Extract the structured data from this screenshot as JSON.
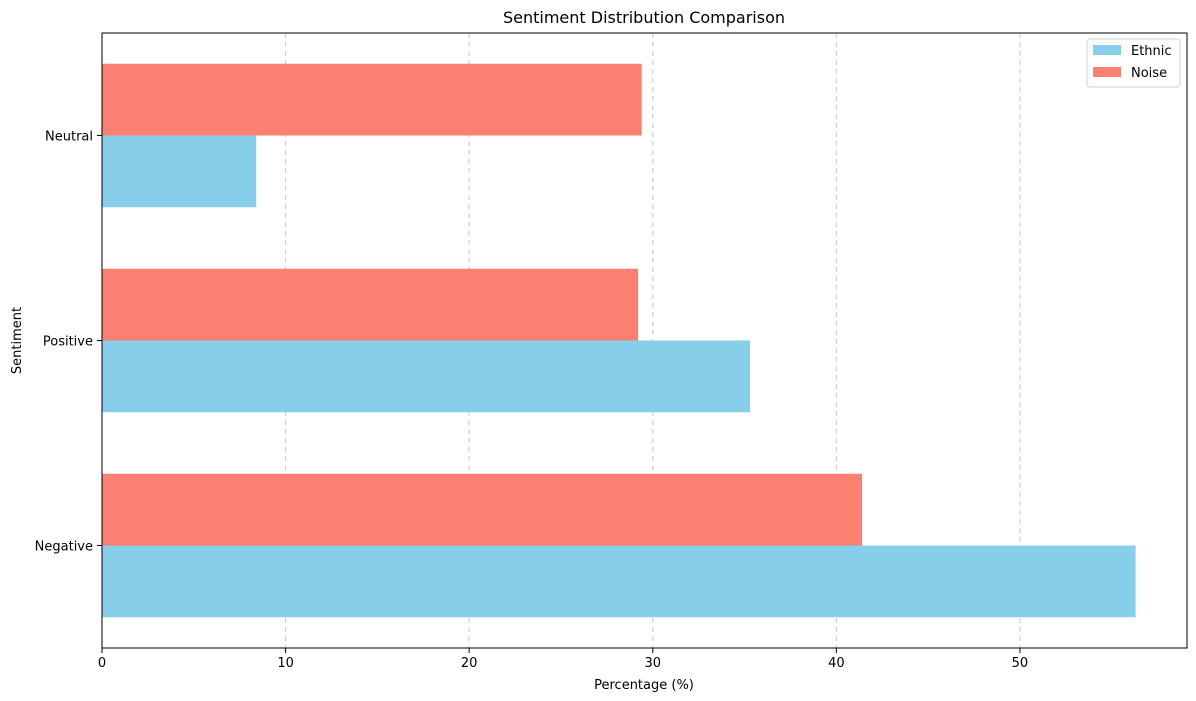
{
  "chart_data": {
    "type": "bar",
    "orientation": "horizontal",
    "title": "Sentiment Distribution Comparison",
    "xlabel": "Percentage (%)",
    "ylabel": "Sentiment",
    "categories": [
      "Negative",
      "Positive",
      "Neutral"
    ],
    "series": [
      {
        "name": "Ethnic",
        "values": [
          56.3,
          35.3,
          8.4
        ],
        "color": "#87CEEB"
      },
      {
        "name": "Noise",
        "values": [
          41.4,
          29.2,
          29.4
        ],
        "color": "#FA8072"
      }
    ],
    "xlim": [
      0,
      59.1
    ],
    "xticks": [
      0,
      10,
      20,
      30,
      40,
      50
    ],
    "grid": "x-dashed",
    "legend_position": "top-right"
  }
}
